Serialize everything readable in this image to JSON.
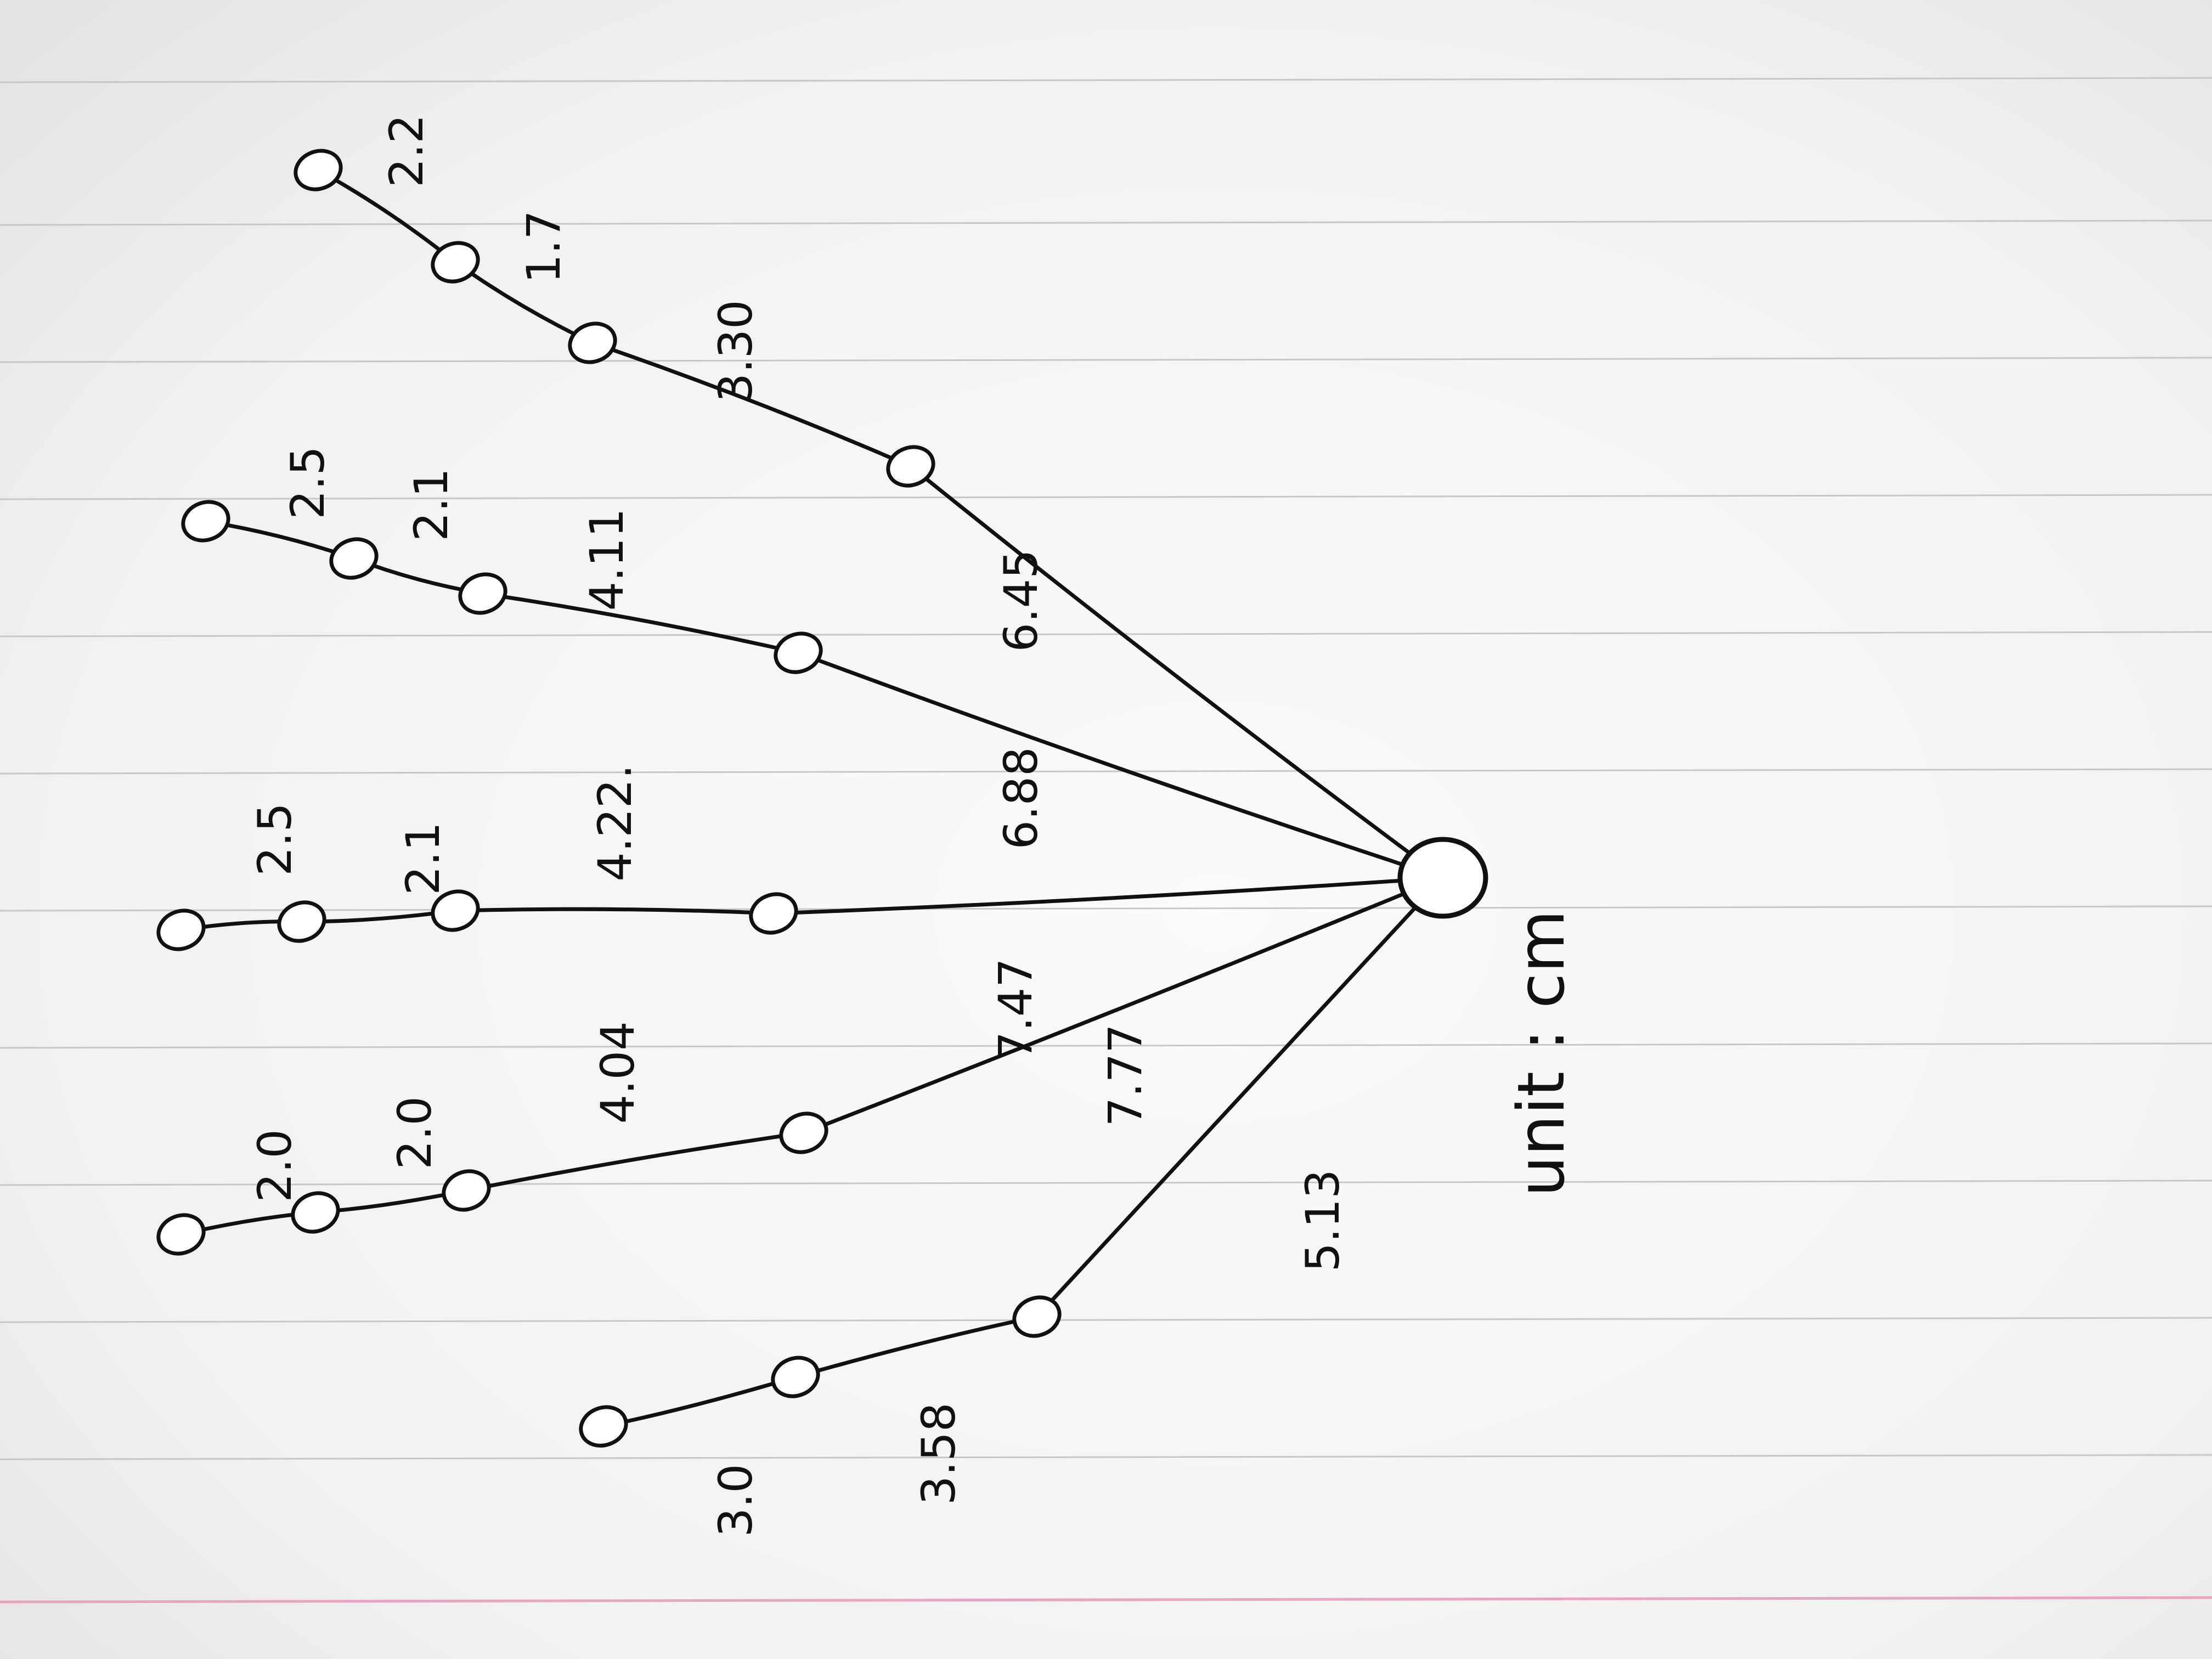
{
  "colors": {
    "ink": "#111111",
    "paper": "#f7f7f5",
    "rule_line": "#c8c8cc",
    "margin_line": "#e8a6c2"
  },
  "unit_label": "unit : cm",
  "fingers": [
    {
      "id": "finger-1",
      "segments": [
        {
          "value": "3.30"
        },
        {
          "value": "1.7"
        },
        {
          "value": "2.2"
        }
      ],
      "palm_edge": "6.45"
    },
    {
      "id": "finger-2",
      "segments": [
        {
          "value": "4.11"
        },
        {
          "value": "2.1"
        },
        {
          "value": "2.5"
        }
      ],
      "palm_edge": "6.88"
    },
    {
      "id": "finger-3",
      "segments": [
        {
          "value": "4.22."
        },
        {
          "value": "2.1"
        },
        {
          "value": "2.5"
        }
      ],
      "palm_edge": "7.47"
    },
    {
      "id": "finger-4",
      "segments": [
        {
          "value": "4.04"
        },
        {
          "value": "2.0"
        },
        {
          "value": "2.0"
        }
      ],
      "palm_edge": "7.77"
    },
    {
      "id": "finger-5",
      "segments": [
        {
          "value": "3.58"
        },
        {
          "value": "3.0"
        }
      ],
      "palm_edge": "5.13"
    }
  ]
}
